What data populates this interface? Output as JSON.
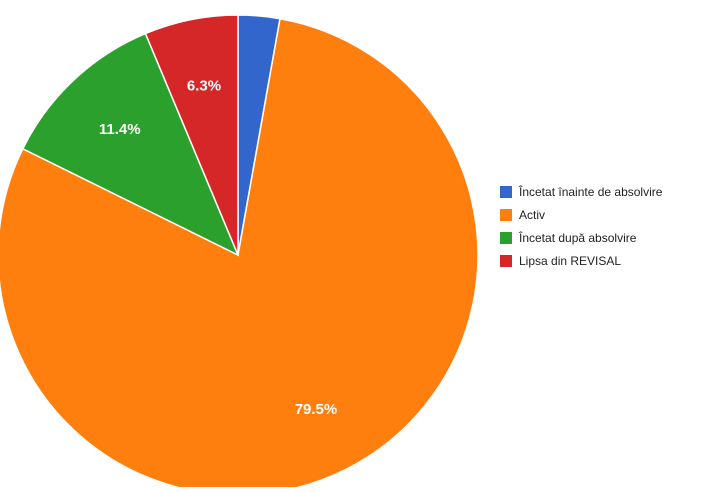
{
  "chart_data": {
    "type": "pie",
    "title": "",
    "categories": [
      "Încetat înainte de absolvire",
      "Activ",
      "Încetat după absolvire",
      "Lipsa din REVISAL"
    ],
    "values": [
      2.8,
      79.5,
      11.4,
      6.3
    ],
    "value_labels": [
      "",
      "79.5%",
      "11.4%",
      "6.3%"
    ],
    "colors": [
      "#3366cc",
      "#ff7f0e",
      "#2ca02c",
      "#d62728"
    ],
    "legend_position": "right",
    "start_angle_deg": 0,
    "direction": "clockwise"
  }
}
